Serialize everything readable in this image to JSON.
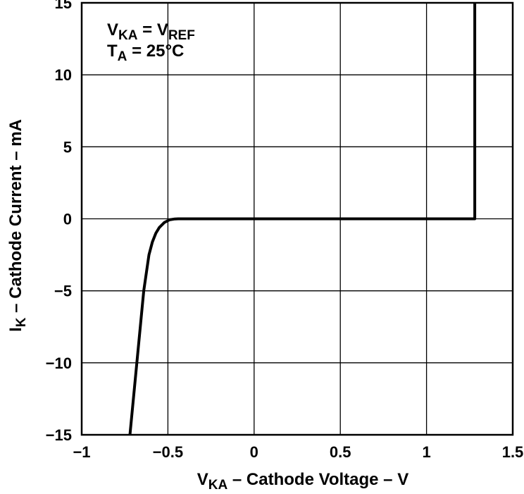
{
  "chart_data": {
    "type": "line",
    "title": "",
    "annotation": {
      "line1": {
        "main": "V",
        "sub": "KA",
        "mid": " = V",
        "sub2": "REF"
      },
      "line2": {
        "main": "T",
        "sub": "A",
        "rest": " = 25°C"
      }
    },
    "xlabel": {
      "main": "V",
      "sub": "KA",
      "rest": " – Cathode Voltage – V"
    },
    "ylabel": {
      "main": "I",
      "sub": "K",
      "rest": " – Cathode Current – mA"
    },
    "xlim": [
      -1,
      1.5
    ],
    "ylim": [
      -15,
      15
    ],
    "xticks": [
      -1,
      -0.5,
      0,
      0.5,
      1,
      1.5
    ],
    "xtick_labels": [
      "−1",
      "−0.5",
      "0",
      "0.5",
      "1",
      "1.5"
    ],
    "yticks": [
      -15,
      -10,
      -5,
      0,
      5,
      10,
      15
    ],
    "ytick_labels": [
      "−15",
      "−10",
      "−5",
      "0",
      "5",
      "10",
      "15"
    ],
    "grid": true,
    "line_color": "#000000",
    "series": [
      {
        "x": [
          -0.72,
          -0.68,
          -0.64,
          -0.61,
          -0.59,
          -0.57,
          -0.55,
          -0.52,
          -0.49,
          -0.46,
          -0.44,
          0,
          0.5,
          1,
          1.28,
          1.28
        ],
        "y": [
          -15,
          -10,
          -5,
          -2.5,
          -1.6,
          -1.0,
          -0.6,
          -0.25,
          -0.07,
          -0.01,
          0,
          0,
          0,
          0,
          0,
          15
        ]
      }
    ]
  }
}
